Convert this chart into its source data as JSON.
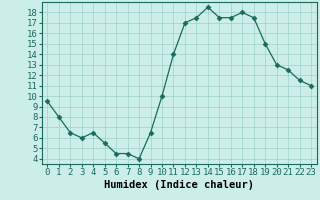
{
  "x": [
    0,
    1,
    2,
    3,
    4,
    5,
    6,
    7,
    8,
    9,
    10,
    11,
    12,
    13,
    14,
    15,
    16,
    17,
    18,
    19,
    20,
    21,
    22,
    23
  ],
  "y": [
    9.5,
    8.0,
    6.5,
    6.0,
    6.5,
    5.5,
    4.5,
    4.5,
    4.0,
    6.5,
    10.0,
    14.0,
    17.0,
    17.5,
    18.5,
    17.5,
    17.5,
    18.0,
    17.5,
    15.0,
    13.0,
    12.5,
    11.5,
    11.0
  ],
  "line_color": "#1a6b5e",
  "marker": "D",
  "marker_size": 2.5,
  "bg_color": "#cceee8",
  "grid_color": "#9fd0ca",
  "xlabel": "Humidex (Indice chaleur)",
  "xlim": [
    -0.5,
    23.5
  ],
  "ylim": [
    3.5,
    19.0
  ],
  "ytick_values": [
    4,
    5,
    6,
    7,
    8,
    9,
    10,
    11,
    12,
    13,
    14,
    15,
    16,
    17,
    18
  ],
  "xlabel_fontsize": 7.5,
  "tick_fontsize": 6.5
}
